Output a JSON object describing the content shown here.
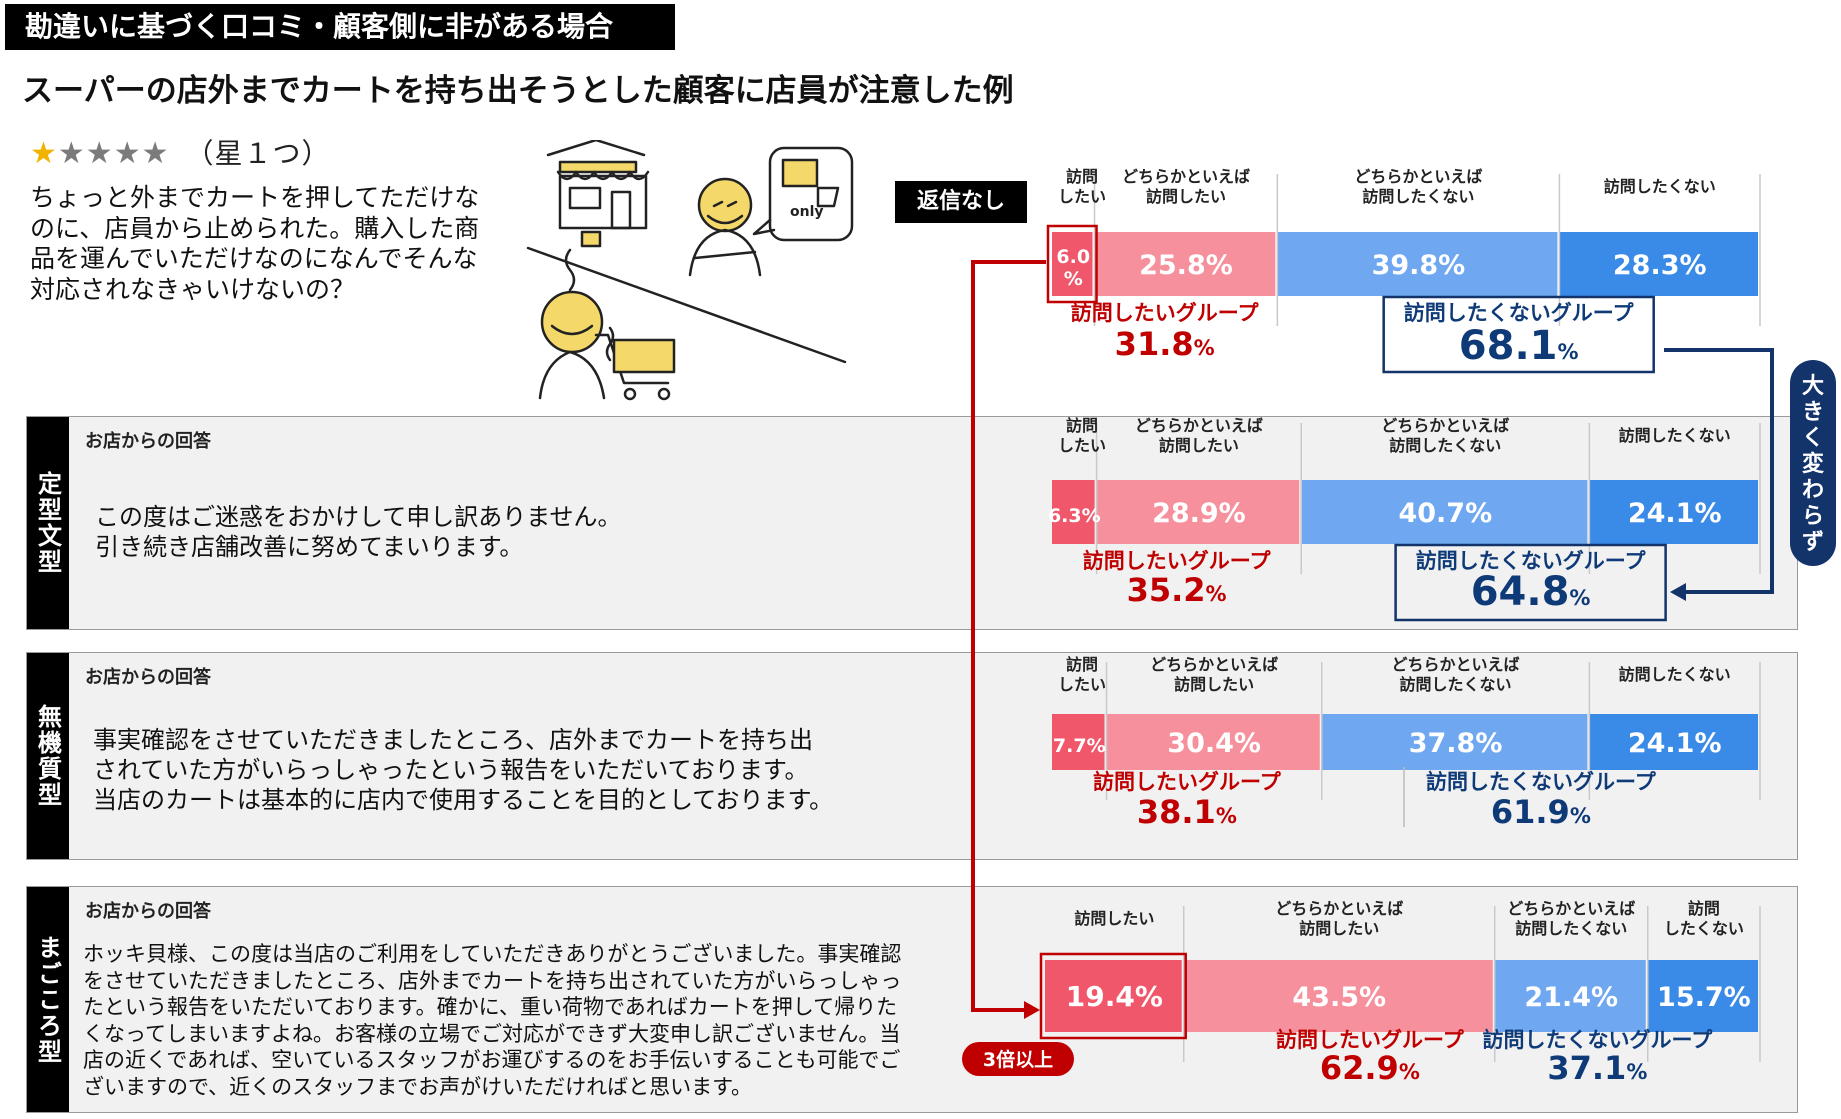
{
  "header": {
    "tag": "勘違いに基づく口コミ・顧客側に非がある場合",
    "subtitle": "スーパーの店外までカートを持ち出そうとした顧客に店員が注意した例"
  },
  "review": {
    "stars_filled": "★",
    "stars_empty": "★★★★",
    "rating_label": "（星１つ）",
    "text": "ちょっと外までカートを押してただけなのに、店員から止められた。購入した商品を運んでいただけなのになんでそんな対応されなきゃいけないの？"
  },
  "illustration": {
    "bubble_text": "only",
    "icon": "store-cart-illustration"
  },
  "no_reply_tag": "返信なし",
  "panels": [
    {
      "side": "定型文型",
      "title": "お店からの回答",
      "lines": [
        "この度はご迷惑をおかけして申し訳ありません。",
        "引き続き店舗改善に努めてまいります。"
      ]
    },
    {
      "side": "無機質型",
      "title": "お店からの回答",
      "lines": [
        "事実確認をさせていただきましたところ、店外までカートを持ち出",
        "されていた方がいらっしゃったという報告をいただいております。",
        "当店のカートは基本的に店内で使用することを目的としております。"
      ]
    },
    {
      "side": "まごころ型",
      "title": "お店からの回答",
      "lines": [
        "ホッキ貝様、この度は当店のご利用をしていただきありがとうございました。事実確認",
        "をさせていただきましたところ、店外までカートを持ち出されていた方がいらっしゃっ",
        "たという報告をいただいております。確かに、重い荷物であればカートを押して帰りた",
        "くなってしまいますよね。お客様の立場でご対応ができず大変申し訳ございません。当",
        "店の近くであれば、空いているスタッフがお運びするのをお手伝いすることも可能でご",
        "ざいますので、近くのスタッフまでお声がけいただければと思います。"
      ]
    }
  ],
  "annotations": {
    "big_change": "大きく変わらず",
    "three_times": "3倍以上"
  },
  "colors": {
    "want": "#f0576a",
    "somewhat_want": "#f6909c",
    "somewhat_not": "#6fa8f0",
    "not_want": "#3a8ae8",
    "red_text": "#c00000",
    "navy_text": "#0f3a78",
    "arrow_red": "#c00000",
    "arrow_navy": "#13336b"
  },
  "chart_data": [
    {
      "type": "bar",
      "orientation": "horizontal-stacked-100",
      "label": "返信なし",
      "categories": [
        [
          "訪問",
          "したい"
        ],
        [
          "どちらかといえば",
          "訪問したい"
        ],
        [
          "どちらかといえば",
          "訪問したくない"
        ],
        [
          "訪問したくない"
        ]
      ],
      "values": [
        6.0,
        25.8,
        39.8,
        28.3
      ],
      "value_labels": [
        "6.0\n%",
        "25.8%",
        "39.8%",
        "28.3%"
      ],
      "groups": [
        {
          "name": "訪問したいグループ",
          "value": "31.8"
        },
        {
          "name": "訪問したくないグループ",
          "value": "68.1"
        }
      ]
    },
    {
      "type": "bar",
      "orientation": "horizontal-stacked-100",
      "label": "定型文型",
      "categories": [
        [
          "訪問",
          "したい"
        ],
        [
          "どちらかといえば",
          "訪問したい"
        ],
        [
          "どちらかといえば",
          "訪問したくない"
        ],
        [
          "訪問したくない"
        ]
      ],
      "values": [
        6.3,
        28.9,
        40.7,
        24.1
      ],
      "value_labels": [
        "6.3%",
        "28.9%",
        "40.7%",
        "24.1%"
      ],
      "groups": [
        {
          "name": "訪問したいグループ",
          "value": "35.2"
        },
        {
          "name": "訪問したくないグループ",
          "value": "64.8"
        }
      ]
    },
    {
      "type": "bar",
      "orientation": "horizontal-stacked-100",
      "label": "無機質型",
      "categories": [
        [
          "訪問",
          "したい"
        ],
        [
          "どちらかといえば",
          "訪問したい"
        ],
        [
          "どちらかといえば",
          "訪問したくない"
        ],
        [
          "訪問したくない"
        ]
      ],
      "values": [
        7.7,
        30.4,
        37.8,
        24.1
      ],
      "value_labels": [
        "7.7%",
        "30.4%",
        "37.8%",
        "24.1%"
      ],
      "groups": [
        {
          "name": "訪問したいグループ",
          "value": "38.1"
        },
        {
          "name": "訪問したくないグループ",
          "value": "61.9"
        }
      ]
    },
    {
      "type": "bar",
      "orientation": "horizontal-stacked-100",
      "label": "まごころ型",
      "categories": [
        [
          "訪問したい"
        ],
        [
          "どちらかといえば",
          "訪問したい"
        ],
        [
          "どちらかといえば",
          "訪問したくない"
        ],
        [
          "訪問",
          "したくない"
        ]
      ],
      "values": [
        19.4,
        43.5,
        21.4,
        15.7
      ],
      "value_labels": [
        "19.4%",
        "43.5%",
        "21.4%",
        "15.7%"
      ],
      "groups": [
        {
          "name": "訪問したいグループ",
          "value": "62.9"
        },
        {
          "name": "訪問したくないグループ",
          "value": "37.1"
        }
      ]
    }
  ]
}
